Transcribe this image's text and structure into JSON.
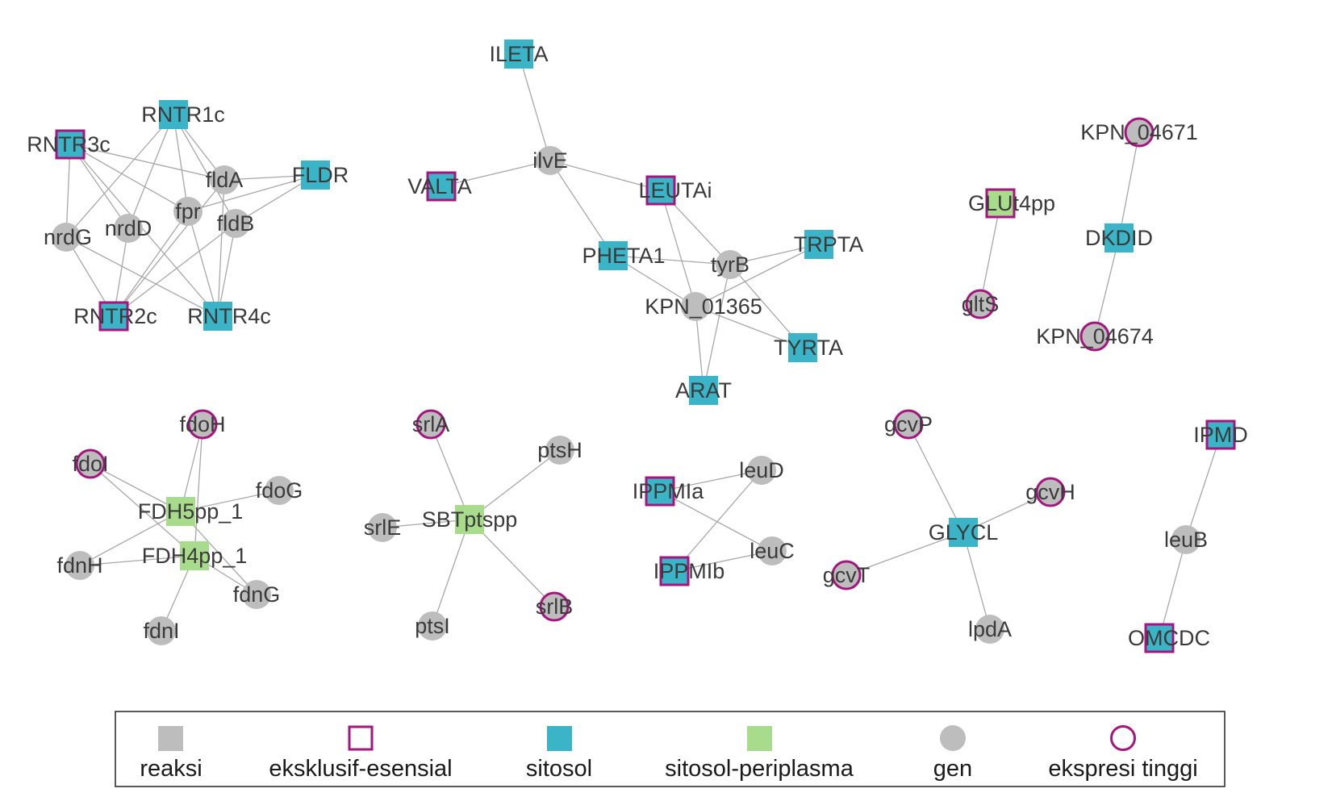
{
  "colors": {
    "edge": "#a8a8a8",
    "gen": "#bdbdbd",
    "reaksi": "#bdbdbd",
    "sitosol": "#3ab4c6",
    "sitosol_periplasma": "#a8dc8c",
    "highlight": "#a6157f"
  },
  "legend": {
    "items": [
      {
        "key": "reaksi",
        "label": "reaksi",
        "shape": "square",
        "fill": "#bdbdbd",
        "outline": false
      },
      {
        "key": "eksklusif",
        "label": "eksklusif-esensial",
        "shape": "square",
        "fill": "none",
        "outline": true
      },
      {
        "key": "sitosol",
        "label": "sitosol",
        "shape": "square",
        "fill": "#3ab4c6",
        "outline": false
      },
      {
        "key": "sitperi",
        "label": "sitosol-periplasma",
        "shape": "square",
        "fill": "#a8dc8c",
        "outline": false
      },
      {
        "key": "gen",
        "label": "gen",
        "shape": "circle",
        "fill": "#bdbdbd",
        "outline": false
      },
      {
        "key": "ekspresi",
        "label": "ekspresi tinggi",
        "shape": "circle",
        "fill": "none",
        "outline": true
      }
    ]
  },
  "nodes": [
    {
      "id": "RNTR1c",
      "label": "RNTR1c",
      "type": "reaksi",
      "comp": "sitosol",
      "highlight": false
    },
    {
      "id": "RNTR3c",
      "label": "RNTR3c",
      "type": "reaksi",
      "comp": "sitosol",
      "highlight": true
    },
    {
      "id": "FLDR",
      "label": "FLDR",
      "type": "reaksi",
      "comp": "sitosol",
      "highlight": false
    },
    {
      "id": "fldA",
      "label": "fldA",
      "type": "gen",
      "highlight": false
    },
    {
      "id": "fpr",
      "label": "fpr",
      "type": "gen",
      "highlight": false
    },
    {
      "id": "fldB",
      "label": "fldB",
      "type": "gen",
      "highlight": false
    },
    {
      "id": "nrdG",
      "label": "nrdG",
      "type": "gen",
      "highlight": false
    },
    {
      "id": "nrdD",
      "label": "nrdD",
      "type": "gen",
      "highlight": false
    },
    {
      "id": "RNTR2c",
      "label": "RNTR2c",
      "type": "reaksi",
      "comp": "sitosol",
      "highlight": true
    },
    {
      "id": "RNTR4c",
      "label": "RNTR4c",
      "type": "reaksi",
      "comp": "sitosol",
      "highlight": false
    },
    {
      "id": "ILETA",
      "label": "ILETA",
      "type": "reaksi",
      "comp": "sitosol",
      "highlight": false
    },
    {
      "id": "ilvE",
      "label": "ilvE",
      "type": "gen",
      "highlight": false
    },
    {
      "id": "VALTA",
      "label": "VALTA",
      "type": "reaksi",
      "comp": "sitosol",
      "highlight": true
    },
    {
      "id": "LEUTAi",
      "label": "LEUTAi",
      "type": "reaksi",
      "comp": "sitosol",
      "highlight": true
    },
    {
      "id": "PHETA1",
      "label": "PHETA1",
      "type": "reaksi",
      "comp": "sitosol",
      "highlight": false
    },
    {
      "id": "tyrB",
      "label": "tyrB",
      "type": "gen",
      "highlight": false
    },
    {
      "id": "TRPTA",
      "label": "TRPTA",
      "type": "reaksi",
      "comp": "sitosol",
      "highlight": false
    },
    {
      "id": "KPN_01365",
      "label": "KPN_01365",
      "type": "gen",
      "highlight": false
    },
    {
      "id": "TYRTA",
      "label": "TYRTA",
      "type": "reaksi",
      "comp": "sitosol",
      "highlight": false
    },
    {
      "id": "ARAT",
      "label": "ARAT",
      "type": "reaksi",
      "comp": "sitosol",
      "highlight": false
    },
    {
      "id": "GLUt4pp",
      "label": "GLUt4pp",
      "type": "reaksi",
      "comp": "sitosol-periplasma",
      "highlight": true
    },
    {
      "id": "gltS",
      "label": "gltS",
      "type": "gen",
      "highlight": true
    },
    {
      "id": "KPN_04671",
      "label": "KPN_04671",
      "type": "gen",
      "highlight": true
    },
    {
      "id": "DKDID",
      "label": "DKDID",
      "type": "reaksi",
      "comp": "sitosol",
      "highlight": false
    },
    {
      "id": "KPN_04674",
      "label": "KPN_04674",
      "type": "gen",
      "highlight": true
    },
    {
      "id": "fdoH",
      "label": "fdoH",
      "type": "gen",
      "highlight": true
    },
    {
      "id": "fdoI",
      "label": "fdoI",
      "type": "gen",
      "highlight": true
    },
    {
      "id": "fdoG",
      "label": "fdoG",
      "type": "gen",
      "highlight": false
    },
    {
      "id": "FDH5pp_1",
      "label": "FDH5pp_1",
      "type": "reaksi",
      "comp": "sitosol-periplasma",
      "highlight": false
    },
    {
      "id": "FDH4pp_1",
      "label": "FDH4pp_1",
      "type": "reaksi",
      "comp": "sitosol-periplasma",
      "highlight": false
    },
    {
      "id": "fdnH",
      "label": "fdnH",
      "type": "gen",
      "highlight": false
    },
    {
      "id": "fdnG",
      "label": "fdnG",
      "type": "gen",
      "highlight": false
    },
    {
      "id": "fdnI",
      "label": "fdnI",
      "type": "gen",
      "highlight": false
    },
    {
      "id": "srlA",
      "label": "srlA",
      "type": "gen",
      "highlight": true
    },
    {
      "id": "ptsH",
      "label": "ptsH",
      "type": "gen",
      "highlight": false
    },
    {
      "id": "SBTptspp",
      "label": "SBTptspp",
      "type": "reaksi",
      "comp": "sitosol-periplasma",
      "highlight": false
    },
    {
      "id": "srlE",
      "label": "srlE",
      "type": "gen",
      "highlight": false
    },
    {
      "id": "srlB",
      "label": "srlB",
      "type": "gen",
      "highlight": true
    },
    {
      "id": "ptsI",
      "label": "ptsI",
      "type": "gen",
      "highlight": false
    },
    {
      "id": "leuD",
      "label": "leuD",
      "type": "gen",
      "highlight": false
    },
    {
      "id": "IPPMIa",
      "label": "IPPMIa",
      "type": "reaksi",
      "comp": "sitosol",
      "highlight": true
    },
    {
      "id": "leuC",
      "label": "leuC",
      "type": "gen",
      "highlight": false
    },
    {
      "id": "IPPMIb",
      "label": "IPPMIb",
      "type": "reaksi",
      "comp": "sitosol",
      "highlight": true
    },
    {
      "id": "gcvP",
      "label": "gcvP",
      "type": "gen",
      "highlight": true
    },
    {
      "id": "gcvH",
      "label": "gcvH",
      "type": "gen",
      "highlight": true
    },
    {
      "id": "GLYCL",
      "label": "GLYCL",
      "type": "reaksi",
      "comp": "sitosol",
      "highlight": false
    },
    {
      "id": "gcvT",
      "label": "gcvT",
      "type": "gen",
      "highlight": true
    },
    {
      "id": "lpdA",
      "label": "lpdA",
      "type": "gen",
      "highlight": false
    },
    {
      "id": "IPMD",
      "label": "IPMD",
      "type": "reaksi",
      "comp": "sitosol",
      "highlight": true
    },
    {
      "id": "leuB",
      "label": "leuB",
      "type": "gen",
      "highlight": false
    },
    {
      "id": "OMCDC",
      "label": "OMCDC",
      "type": "reaksi",
      "comp": "sitosol",
      "highlight": true
    }
  ],
  "edges": [
    [
      "RNTR1c",
      "fldA"
    ],
    [
      "RNTR1c",
      "fpr"
    ],
    [
      "RNTR1c",
      "fldB"
    ],
    [
      "RNTR1c",
      "nrdD"
    ],
    [
      "RNTR1c",
      "nrdG"
    ],
    [
      "RNTR3c",
      "fldA"
    ],
    [
      "RNTR3c",
      "fpr"
    ],
    [
      "RNTR3c",
      "nrdG"
    ],
    [
      "RNTR3c",
      "nrdD"
    ],
    [
      "RNTR3c",
      "RNTR4c"
    ],
    [
      "FLDR",
      "fldA"
    ],
    [
      "FLDR",
      "fpr"
    ],
    [
      "FLDR",
      "fldB"
    ],
    [
      "fldA",
      "RNTR4c"
    ],
    [
      "fldA",
      "RNTR2c"
    ],
    [
      "fpr",
      "RNTR2c"
    ],
    [
      "fpr",
      "RNTR4c"
    ],
    [
      "fldB",
      "RNTR2c"
    ],
    [
      "fldB",
      "RNTR4c"
    ],
    [
      "nrdG",
      "RNTR2c"
    ],
    [
      "nrdG",
      "RNTR4c"
    ],
    [
      "nrdD",
      "RNTR2c"
    ],
    [
      "ILETA",
      "ilvE"
    ],
    [
      "VALTA",
      "ilvE"
    ],
    [
      "ilvE",
      "LEUTAi"
    ],
    [
      "ilvE",
      "PHETA1"
    ],
    [
      "LEUTAi",
      "tyrB"
    ],
    [
      "LEUTAi",
      "KPN_01365"
    ],
    [
      "PHETA1",
      "tyrB"
    ],
    [
      "PHETA1",
      "KPN_01365"
    ],
    [
      "tyrB",
      "TRPTA"
    ],
    [
      "tyrB",
      "TYRTA"
    ],
    [
      "tyrB",
      "ARAT"
    ],
    [
      "KPN_01365",
      "TRPTA"
    ],
    [
      "KPN_01365",
      "TYRTA"
    ],
    [
      "KPN_01365",
      "ARAT"
    ],
    [
      "GLUt4pp",
      "gltS"
    ],
    [
      "KPN_04671",
      "DKDID"
    ],
    [
      "DKDID",
      "KPN_04674"
    ],
    [
      "fdoH",
      "FDH5pp_1"
    ],
    [
      "fdoI",
      "FDH5pp_1"
    ],
    [
      "fdoG",
      "FDH5pp_1"
    ],
    [
      "fdnH",
      "FDH4pp_1"
    ],
    [
      "fdnG",
      "FDH4pp_1"
    ],
    [
      "fdnI",
      "FDH4pp_1"
    ],
    [
      "fdoH",
      "FDH4pp_1"
    ],
    [
      "fdoI",
      "FDH4pp_1"
    ],
    [
      "fdnH",
      "FDH5pp_1"
    ],
    [
      "fdnG",
      "FDH5pp_1"
    ],
    [
      "srlA",
      "SBTptspp"
    ],
    [
      "ptsH",
      "SBTptspp"
    ],
    [
      "srlE",
      "SBTptspp"
    ],
    [
      "srlB",
      "SBTptspp"
    ],
    [
      "ptsI",
      "SBTptspp"
    ],
    [
      "IPPMIa",
      "leuD"
    ],
    [
      "IPPMIa",
      "leuC"
    ],
    [
      "IPPMIb",
      "leuD"
    ],
    [
      "IPPMIb",
      "leuC"
    ],
    [
      "gcvP",
      "GLYCL"
    ],
    [
      "gcvH",
      "GLYCL"
    ],
    [
      "gcvT",
      "GLYCL"
    ],
    [
      "lpdA",
      "GLYCL"
    ],
    [
      "IPMD",
      "leuB"
    ],
    [
      "leuB",
      "OMCDC"
    ]
  ]
}
